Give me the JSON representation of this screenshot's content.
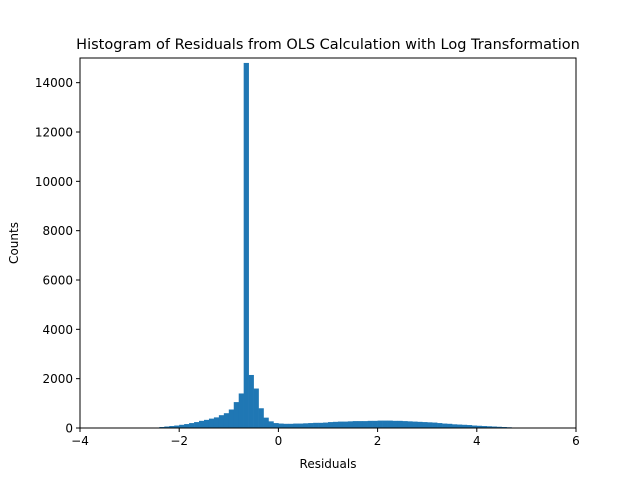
{
  "chart_data": {
    "type": "bar",
    "title": "Histogram of Residuals from OLS Calculation with Log Transformation",
    "xlabel": "Residuals",
    "ylabel": "Counts",
    "xlim": [
      -4,
      6
    ],
    "ylim": [
      0,
      15000
    ],
    "xticks": [
      -4,
      -2,
      0,
      2,
      4,
      6
    ],
    "yticks": [
      0,
      2000,
      4000,
      6000,
      8000,
      10000,
      12000,
      14000
    ],
    "grid": false,
    "legend": "none",
    "bar_color": "#1f77b4",
    "bin_width": 0.1,
    "bin_starts": [
      -2.5,
      -2.4,
      -2.3,
      -2.2,
      -2.1,
      -2.0,
      -1.9,
      -1.8,
      -1.7,
      -1.6,
      -1.5,
      -1.4,
      -1.3,
      -1.2,
      -1.1,
      -1.0,
      -0.9,
      -0.8,
      -0.7,
      -0.6,
      -0.5,
      -0.4,
      -0.3,
      -0.2,
      -0.1,
      0.0,
      0.1,
      0.2,
      0.3,
      0.4,
      0.5,
      0.6,
      0.7,
      0.8,
      0.9,
      1.0,
      1.1,
      1.2,
      1.3,
      1.4,
      1.5,
      1.6,
      1.7,
      1.8,
      1.9,
      2.0,
      2.1,
      2.2,
      2.3,
      2.4,
      2.5,
      2.6,
      2.7,
      2.8,
      2.9,
      3.0,
      3.1,
      3.2,
      3.3,
      3.4,
      3.5,
      3.6,
      3.7,
      3.8,
      3.9,
      4.0,
      4.1,
      4.2,
      4.3,
      4.4,
      4.5,
      4.6,
      4.7,
      4.8
    ],
    "counts": [
      20,
      40,
      60,
      80,
      100,
      130,
      160,
      200,
      240,
      290,
      330,
      380,
      430,
      520,
      600,
      750,
      1050,
      1400,
      14800,
      2150,
      1600,
      800,
      420,
      270,
      200,
      180,
      170,
      170,
      180,
      180,
      190,
      200,
      210,
      210,
      220,
      240,
      250,
      260,
      260,
      270,
      280,
      280,
      280,
      290,
      290,
      300,
      300,
      300,
      290,
      290,
      280,
      270,
      260,
      250,
      240,
      230,
      220,
      200,
      180,
      170,
      150,
      140,
      130,
      120,
      100,
      90,
      80,
      70,
      60,
      50,
      40,
      30,
      20,
      10
    ]
  }
}
